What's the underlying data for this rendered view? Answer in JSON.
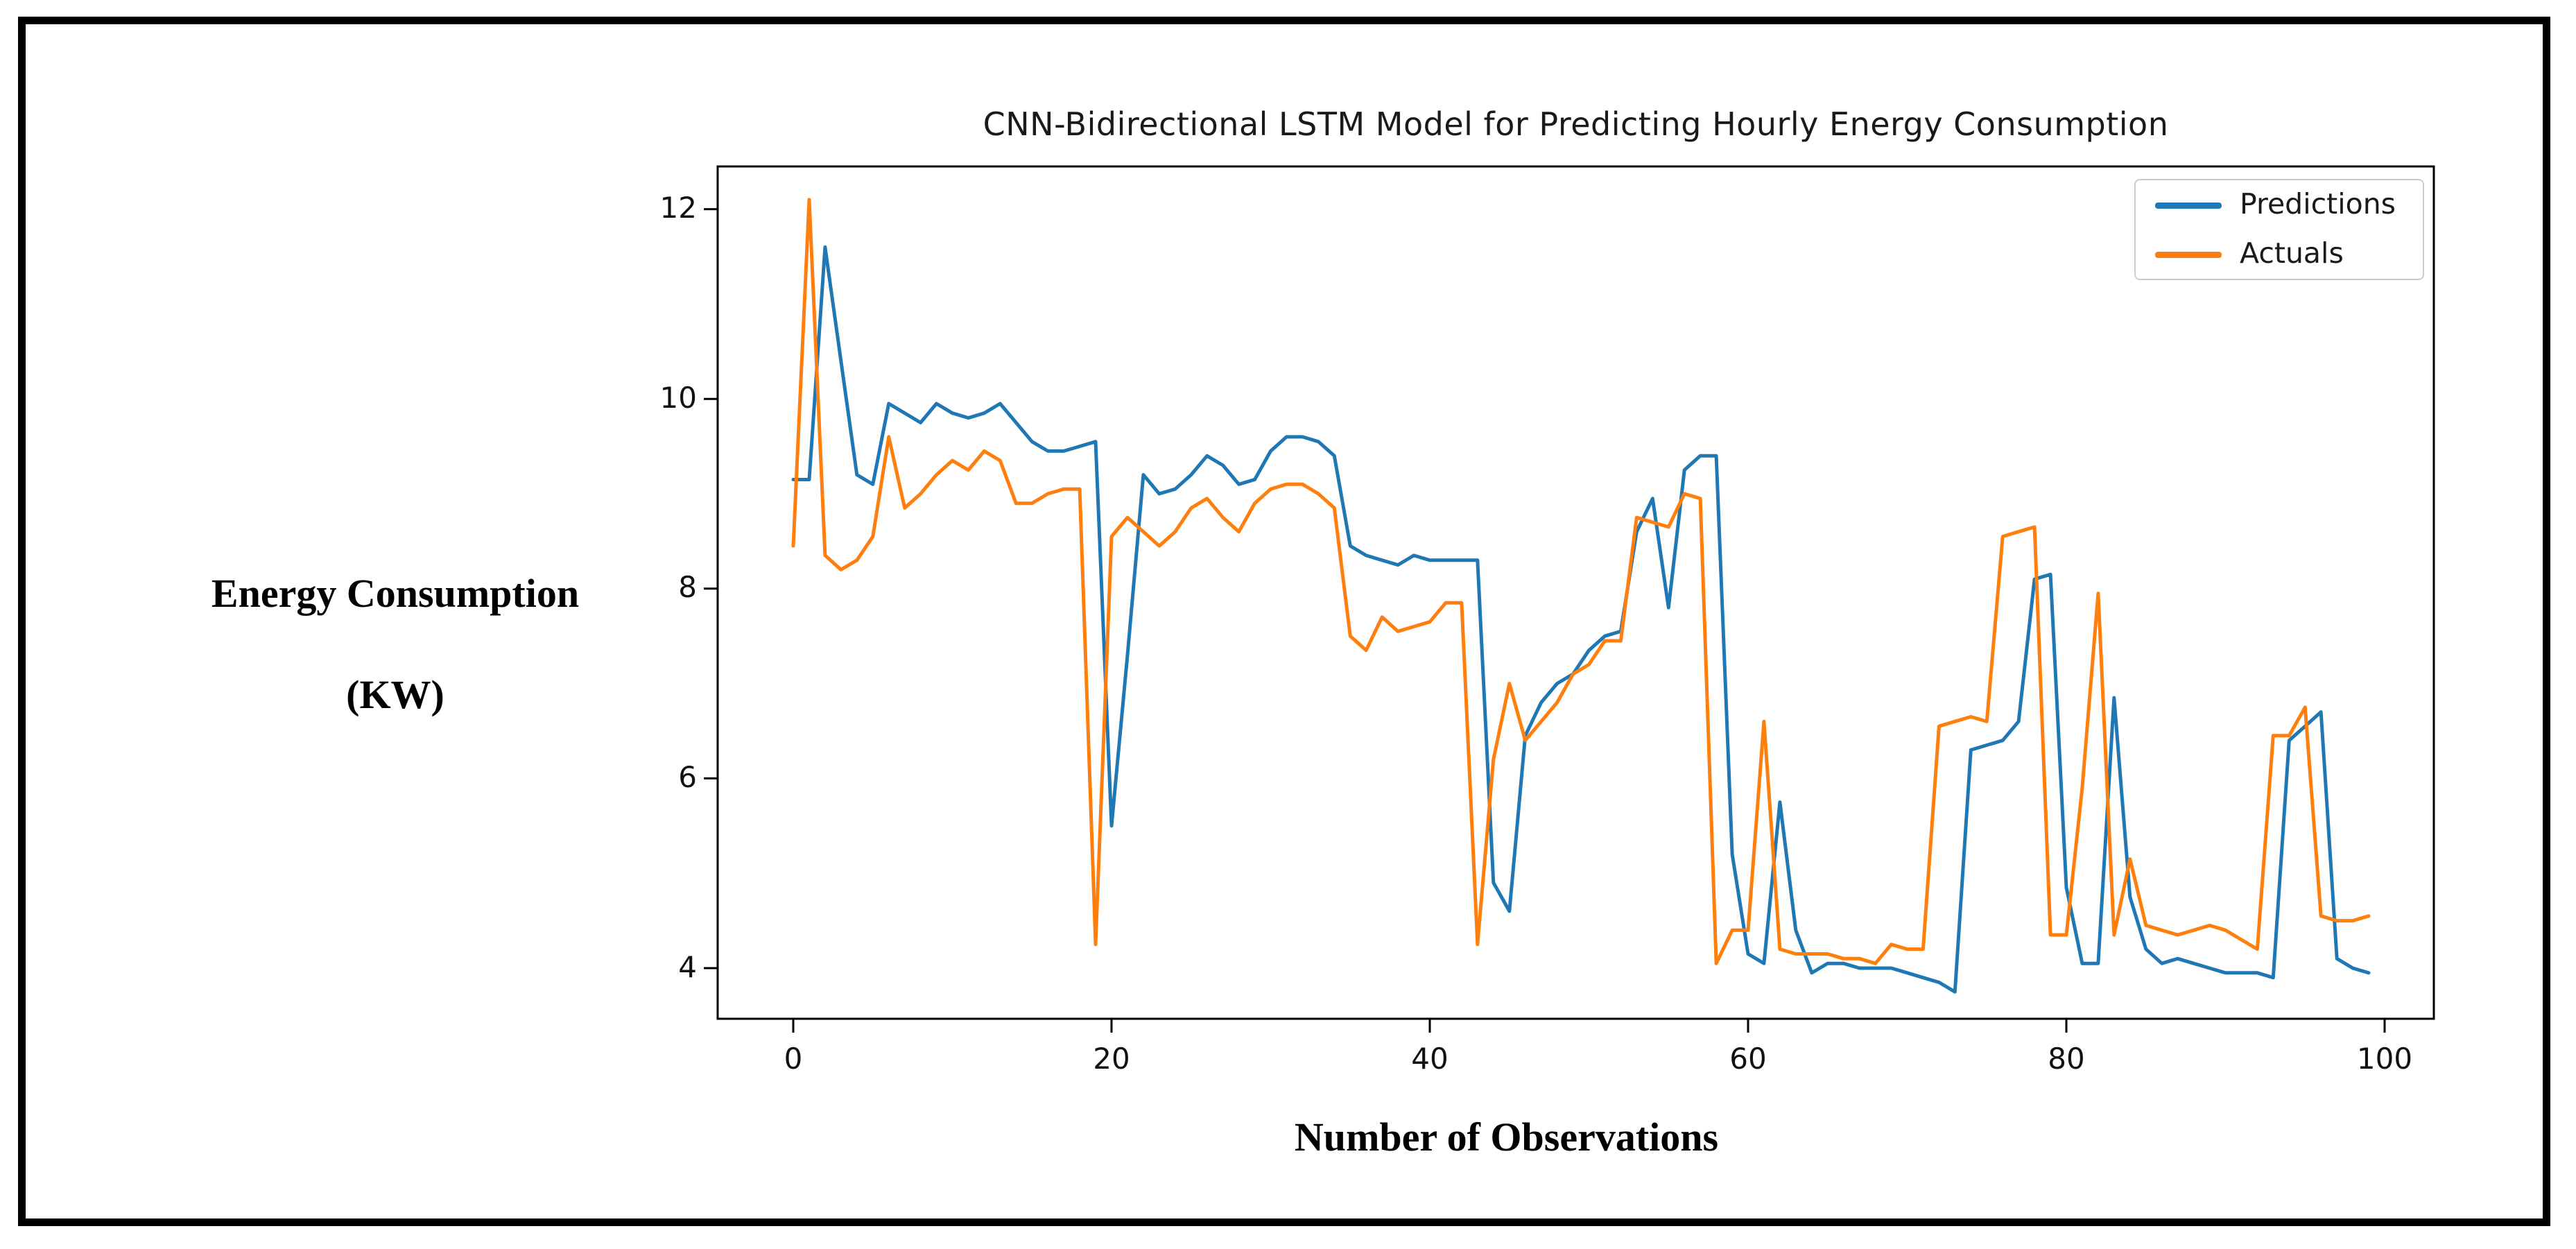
{
  "title": "CNN-Bidirectional LSTM Model for Predicting Hourly Energy Consumption",
  "y_axis_label_line1": "Energy Consumption",
  "y_axis_label_line2": "(KW)",
  "x_axis_label": "Number of Observations",
  "legend": {
    "items": [
      {
        "label": "Predictions",
        "color": "#1f77b4"
      },
      {
        "label": "Actuals",
        "color": "#ff7f0e"
      }
    ],
    "position": "upper right"
  },
  "axes": {
    "x_ticks": [
      {
        "label": "0"
      },
      {
        "label": "20"
      },
      {
        "label": "40"
      },
      {
        "label": "60"
      },
      {
        "label": "80"
      },
      {
        "label": "100"
      }
    ],
    "y_ticks": [
      {
        "label": "12"
      },
      {
        "label": "10"
      },
      {
        "label": "8"
      },
      {
        "label": "6"
      },
      {
        "label": "4"
      }
    ]
  },
  "chart_data": {
    "type": "line",
    "title": "CNN-Bidirectional LSTM Model for Predicting Hourly Energy Consumption",
    "xlabel": "Number of Observations",
    "ylabel": "Energy Consumption (KW)",
    "x": [
      0,
      1,
      2,
      3,
      4,
      5,
      6,
      7,
      8,
      9,
      10,
      11,
      12,
      13,
      14,
      15,
      16,
      17,
      18,
      19,
      20,
      21,
      22,
      23,
      24,
      25,
      26,
      27,
      28,
      29,
      30,
      31,
      32,
      33,
      34,
      35,
      36,
      37,
      38,
      39,
      40,
      41,
      42,
      43,
      44,
      45,
      46,
      47,
      48,
      49,
      50,
      51,
      52,
      53,
      54,
      55,
      56,
      57,
      58,
      59,
      60,
      61,
      62,
      63,
      64,
      65,
      66,
      67,
      68,
      69,
      70,
      71,
      72,
      73,
      74,
      75,
      76,
      77,
      78,
      79,
      80,
      81,
      82,
      83,
      84,
      85,
      86,
      87,
      88,
      89,
      90,
      91,
      92,
      93,
      94,
      95,
      96,
      97,
      98,
      99
    ],
    "x_tick_values": [
      0,
      20,
      40,
      60,
      80,
      100
    ],
    "y_tick_values": [
      12,
      10,
      8,
      6,
      4
    ],
    "xlim": [
      -4.7,
      103
    ],
    "ylim": [
      3.45,
      12.45
    ],
    "grid": false,
    "legend_position": "upper right",
    "series": [
      {
        "name": "Predictions",
        "color": "#1f77b4",
        "values": [
          9.15,
          9.15,
          11.6,
          10.4,
          9.2,
          9.1,
          9.95,
          9.85,
          9.75,
          9.95,
          9.85,
          9.8,
          9.85,
          9.95,
          9.75,
          9.55,
          9.45,
          9.45,
          9.5,
          9.55,
          5.5,
          7.3,
          9.2,
          9.0,
          9.05,
          9.2,
          9.4,
          9.3,
          9.1,
          9.15,
          9.45,
          9.6,
          9.6,
          9.55,
          9.4,
          8.45,
          8.35,
          8.3,
          8.25,
          8.35,
          8.3,
          8.3,
          8.3,
          8.3,
          4.9,
          4.6,
          6.45,
          6.8,
          7.0,
          7.1,
          7.35,
          7.5,
          7.55,
          8.6,
          8.95,
          7.8,
          9.25,
          9.4,
          9.4,
          5.2,
          4.15,
          4.05,
          5.75,
          4.4,
          3.95,
          4.05,
          4.05,
          4.0,
          4.0,
          4.0,
          3.95,
          3.9,
          3.85,
          3.75,
          6.3,
          6.35,
          6.4,
          6.6,
          8.1,
          8.15,
          4.85,
          4.05,
          4.05,
          6.85,
          4.75,
          4.2,
          4.05,
          4.1,
          4.05,
          4.0,
          3.95,
          3.95,
          3.95,
          3.9,
          6.4,
          6.55,
          6.7,
          4.1,
          4.0,
          3.95
        ]
      },
      {
        "name": "Actuals",
        "color": "#ff7f0e",
        "values": [
          8.45,
          12.1,
          8.35,
          8.2,
          8.3,
          8.55,
          9.6,
          8.85,
          9.0,
          9.2,
          9.35,
          9.25,
          9.45,
          9.35,
          8.9,
          8.9,
          9.0,
          9.05,
          9.05,
          4.25,
          8.55,
          8.75,
          8.6,
          8.45,
          8.6,
          8.85,
          8.95,
          8.75,
          8.6,
          8.9,
          9.05,
          9.1,
          9.1,
          9.0,
          8.85,
          7.5,
          7.35,
          7.7,
          7.55,
          7.6,
          7.65,
          7.85,
          7.85,
          4.25,
          6.2,
          7.0,
          6.4,
          6.6,
          6.8,
          7.1,
          7.2,
          7.45,
          7.45,
          8.75,
          8.7,
          8.65,
          9.0,
          8.95,
          4.05,
          4.4,
          4.4,
          6.6,
          4.2,
          4.15,
          4.15,
          4.15,
          4.1,
          4.1,
          4.05,
          4.25,
          4.2,
          4.2,
          6.55,
          6.6,
          6.65,
          6.6,
          8.55,
          8.6,
          8.65,
          4.35,
          4.35,
          5.9,
          7.95,
          4.35,
          5.15,
          4.45,
          4.4,
          4.35,
          4.4,
          4.45,
          4.4,
          4.3,
          4.2,
          6.45,
          6.45,
          6.75,
          4.55,
          4.5,
          4.5,
          4.55
        ]
      }
    ]
  }
}
